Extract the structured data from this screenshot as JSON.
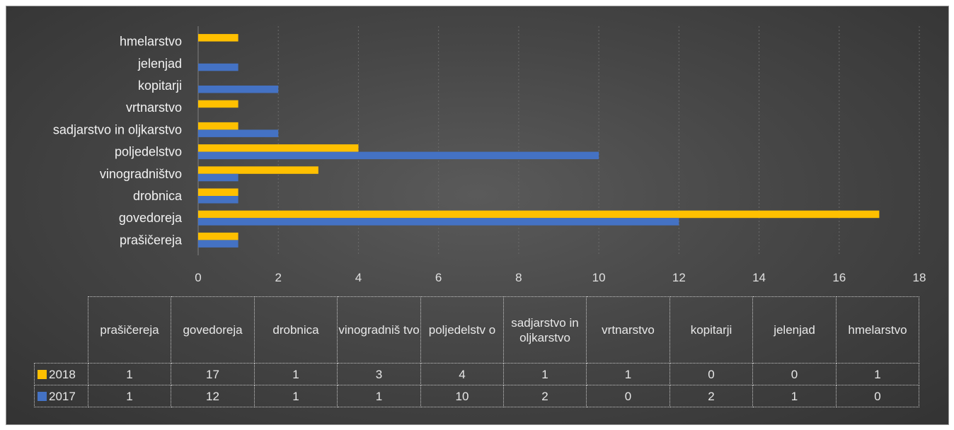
{
  "chart_data": {
    "type": "bar",
    "orientation": "horizontal",
    "title": "",
    "xlabel": "",
    "ylabel": "",
    "categories": [
      "prašičereja",
      "govedoreja",
      "drobnica",
      "vinogradništvo",
      "poljedelstvo",
      "sadjarstvo in oljkarstvo",
      "vrtnarstvo",
      "kopitarji",
      "jelenjad",
      "hmelarstvo"
    ],
    "table_categories": [
      "prašičereja",
      "govedoreja",
      "drobnica",
      "vinogradniš tvo",
      "poljedelstv o",
      "sadjarstvo in oljkarstvo",
      "vrtnarstvo",
      "kopitarji",
      "jelenjad",
      "hmelarstvo"
    ],
    "series": [
      {
        "name": "2018",
        "color": "#ffc000",
        "values": [
          1,
          17,
          1,
          3,
          4,
          1,
          1,
          0,
          0,
          1
        ]
      },
      {
        "name": "2017",
        "color": "#4472c4",
        "values": [
          1,
          12,
          1,
          1,
          10,
          2,
          0,
          2,
          1,
          0
        ]
      }
    ],
    "xlim": [
      0,
      18
    ],
    "xticks": [
      "0",
      "2",
      "4",
      "6",
      "8",
      "10",
      "12",
      "14",
      "16",
      "18"
    ],
    "grid": "vertical",
    "legend": "data-table"
  }
}
